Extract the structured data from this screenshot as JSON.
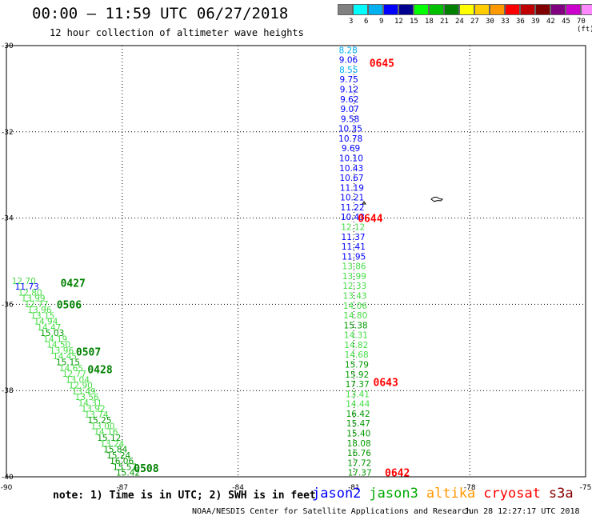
{
  "header": {
    "title": "00:00 – 11:59 UTC 06/27/2018",
    "subtitle": "12 hour collection of altimeter wave heights"
  },
  "legend": {
    "colors": [
      "#808080",
      "#00ffff",
      "#00b0f0",
      "#0000ff",
      "#000090",
      "#00ff00",
      "#00c000",
      "#008000",
      "#ffff00",
      "#ffcc00",
      "#ff9900",
      "#ff0000",
      "#c00000",
      "#800000",
      "#800080",
      "#cc00cc",
      "#ff88ff",
      "#000000"
    ],
    "labels": [
      "3",
      "6",
      "9",
      "12",
      "15",
      "18",
      "21",
      "24",
      "27",
      "30",
      "33",
      "36",
      "39",
      "42",
      "45",
      "70 (ft)"
    ]
  },
  "axes": {
    "x_ticks": [
      "-90",
      "-87",
      "-84",
      "-81",
      "-78",
      "-75"
    ],
    "y_ticks": [
      "-30",
      "-32",
      "-34",
      "-36",
      "-38",
      "-40"
    ]
  },
  "tracks": [
    {
      "satellite": "jason2",
      "labels": [
        {
          "text": "8.28",
          "color": "#00b0f0"
        },
        {
          "text": "9.06",
          "color": "#0000ff"
        },
        {
          "text": "8.55",
          "color": "#00b0f0"
        },
        {
          "text": "9.75",
          "color": "#0000ff"
        },
        {
          "text": "9.12",
          "color": "#0000ff"
        },
        {
          "text": "9.62",
          "color": "#0000ff"
        },
        {
          "text": "9.07",
          "color": "#0000ff"
        },
        {
          "text": "9.58",
          "color": "#0000ff"
        },
        {
          "text": "10.35",
          "color": "#0000ff"
        },
        {
          "text": "10.78",
          "color": "#0000ff"
        },
        {
          "text": "9.69",
          "color": "#0000ff"
        },
        {
          "text": "10.10",
          "color": "#0000ff"
        },
        {
          "text": "10.43",
          "color": "#0000ff"
        },
        {
          "text": "10.67",
          "color": "#0000ff"
        },
        {
          "text": "11.19",
          "color": "#0000ff"
        },
        {
          "text": "10.21",
          "color": "#0000ff"
        },
        {
          "text": "11.22",
          "color": "#0000ff"
        },
        {
          "text": "10.43",
          "color": "#0000ff"
        },
        {
          "text": "12.12",
          "color": "#44dd44"
        },
        {
          "text": "11.37",
          "color": "#0000ff"
        },
        {
          "text": "11.41",
          "color": "#0000ff"
        },
        {
          "text": "11.95",
          "color": "#0000ff"
        },
        {
          "text": "13.86",
          "color": "#44dd44"
        },
        {
          "text": "13.99",
          "color": "#44dd44"
        },
        {
          "text": "12.33",
          "color": "#44dd44"
        },
        {
          "text": "13.43",
          "color": "#44dd44"
        },
        {
          "text": "14.06",
          "color": "#44dd44"
        },
        {
          "text": "14.80",
          "color": "#44dd44"
        },
        {
          "text": "15.38",
          "color": "#009900"
        },
        {
          "text": "14.31",
          "color": "#44dd44"
        },
        {
          "text": "14.82",
          "color": "#44dd44"
        },
        {
          "text": "14.68",
          "color": "#44dd44"
        },
        {
          "text": "15.79",
          "color": "#009900"
        },
        {
          "text": "15.92",
          "color": "#009900"
        },
        {
          "text": "17.37",
          "color": "#009900"
        },
        {
          "text": "13.41",
          "color": "#44dd44"
        },
        {
          "text": "14.44",
          "color": "#44dd44"
        },
        {
          "text": "16.42",
          "color": "#009900"
        },
        {
          "text": "15.47",
          "color": "#009900"
        },
        {
          "text": "15.40",
          "color": "#009900"
        },
        {
          "text": "18.08",
          "color": "#009900"
        },
        {
          "text": "16.76",
          "color": "#009900"
        },
        {
          "text": "17.72",
          "color": "#009900"
        },
        {
          "text": "17.37",
          "color": "#009900"
        }
      ],
      "times": [
        {
          "text": "0645",
          "color": "#ff0000",
          "lon": -80.6,
          "lat": -30.4
        },
        {
          "text": "0644",
          "color": "#ff0000",
          "lon": -80.9,
          "lat": -34.0
        },
        {
          "text": "0643",
          "color": "#ff0000",
          "lon": -80.5,
          "lat": -37.8
        },
        {
          "text": "0642",
          "color": "#ff0000",
          "lon": -80.2,
          "lat": -39.9
        }
      ]
    },
    {
      "satellite": "jason3",
      "labels": [
        {
          "text": "12.70",
          "color": "#44dd44"
        },
        {
          "text": "11.73",
          "color": "#0000ff"
        },
        {
          "text": "12.80",
          "color": "#44dd44"
        },
        {
          "text": "13.99",
          "color": "#44dd44"
        },
        {
          "text": "12.77",
          "color": "#44dd44"
        },
        {
          "text": "13.96",
          "color": "#44dd44"
        },
        {
          "text": "13.15",
          "color": "#44dd44"
        },
        {
          "text": "14.94",
          "color": "#44dd44"
        },
        {
          "text": "14.47",
          "color": "#44dd44"
        },
        {
          "text": "15.03",
          "color": "#009900"
        },
        {
          "text": "14.19",
          "color": "#44dd44"
        },
        {
          "text": "14.50",
          "color": "#44dd44"
        },
        {
          "text": "13.96",
          "color": "#44dd44"
        },
        {
          "text": "14.45",
          "color": "#44dd44"
        },
        {
          "text": "15.15",
          "color": "#009900"
        },
        {
          "text": "14.65",
          "color": "#44dd44"
        },
        {
          "text": "12.77",
          "color": "#44dd44"
        },
        {
          "text": "13.04",
          "color": "#44dd44"
        },
        {
          "text": "12.90",
          "color": "#44dd44"
        },
        {
          "text": "13.49",
          "color": "#44dd44"
        },
        {
          "text": "13.56",
          "color": "#44dd44"
        },
        {
          "text": "14.31",
          "color": "#44dd44"
        },
        {
          "text": "13.92",
          "color": "#44dd44"
        },
        {
          "text": "13.74",
          "color": "#44dd44"
        },
        {
          "text": "15.25",
          "color": "#009900"
        },
        {
          "text": "13.00",
          "color": "#44dd44"
        },
        {
          "text": "14.16",
          "color": "#44dd44"
        },
        {
          "text": "15.12",
          "color": "#009900"
        },
        {
          "text": "13.24",
          "color": "#44dd44"
        },
        {
          "text": "15.84",
          "color": "#009900"
        },
        {
          "text": "15.24",
          "color": "#009900"
        },
        {
          "text": "16.06",
          "color": "#009900"
        },
        {
          "text": "15.57",
          "color": "#009900"
        },
        {
          "text": "15.42",
          "color": "#009900"
        }
      ],
      "times": [
        {
          "text": "0427",
          "color": "#008000",
          "lon": -88.6,
          "lat": -35.5
        },
        {
          "text": "0506",
          "color": "#008000",
          "lon": -88.7,
          "lat": -36.0
        },
        {
          "text": "0507",
          "color": "#008000",
          "lon": -88.2,
          "lat": -37.1
        },
        {
          "text": "0428",
          "color": "#008000",
          "lon": -87.9,
          "lat": -37.5
        },
        {
          "text": "0508",
          "color": "#008000",
          "lon": -86.7,
          "lat": -39.8
        }
      ]
    }
  ],
  "note": "note:  1) Time is in UTC;  2) SWH is in feet",
  "satellites": [
    {
      "name": "jason2",
      "color": "#0000ff"
    },
    {
      "name": "jason3",
      "color": "#00aa00"
    },
    {
      "name": "altika",
      "color": "#ff9900"
    },
    {
      "name": "cryosat",
      "color": "#ff0000"
    },
    {
      "name": "s3a",
      "color": "#880000"
    }
  ],
  "footer": {
    "credit": "NOAA/NESDIS Center for Satellite Applications and Research",
    "timestamp": "Jun 28 12:27:17 UTC 2018"
  }
}
